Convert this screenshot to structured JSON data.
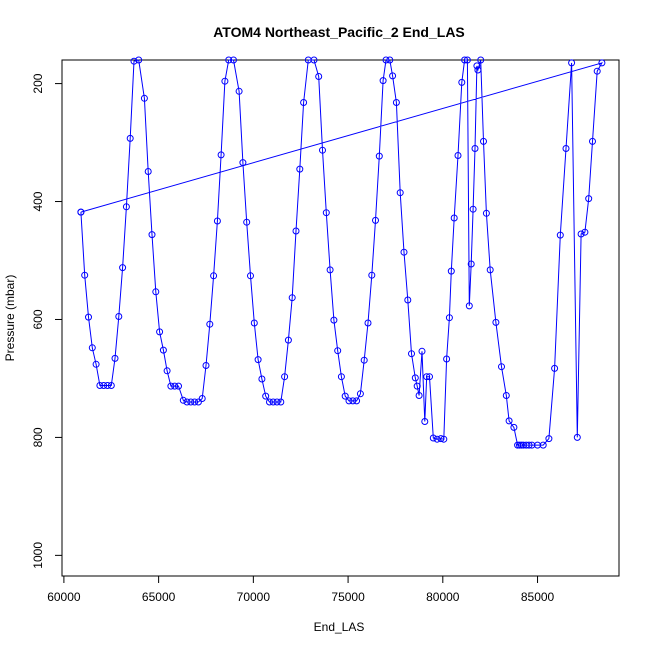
{
  "chart_data": {
    "type": "line",
    "title": "ATOM4 Northeast_Pacific_2 End_LAS",
    "xlabel": "End_LAS",
    "ylabel": "Pressure (mbar)",
    "xlim": [
      59900,
      89300
    ],
    "ylim": [
      1035,
      160
    ],
    "y_reversed": true,
    "x_ticks": [
      60000,
      65000,
      70000,
      75000,
      80000,
      85000
    ],
    "y_ticks": [
      200,
      400,
      600,
      800,
      1000
    ],
    "grid": false,
    "legend": "none",
    "line_color": "#0000ff",
    "marker": "open-circle",
    "series": [
      {
        "x": [
          60900,
          61100,
          61300,
          61500,
          61700,
          61900,
          62100,
          62300,
          62500,
          62700,
          62900,
          63100,
          63300,
          63500,
          63700,
          63950,
          64250,
          64450,
          64650,
          64850,
          65050,
          65250,
          65450,
          65650,
          65850,
          66050,
          66300,
          66500,
          66700,
          66900,
          67100,
          67300,
          67500,
          67700,
          67900,
          68100,
          68300,
          68500,
          68700,
          68950,
          69250,
          69450,
          69650,
          69850,
          70050,
          70250,
          70450,
          70650,
          70850,
          71050,
          71250,
          71450,
          71650,
          71850,
          72050,
          72250,
          72450,
          72650,
          72900,
          73200,
          73450,
          73650,
          73850,
          74050,
          74250,
          74450,
          74650,
          74850,
          75050,
          75250,
          75450,
          75650,
          75850,
          76050,
          76250,
          76450,
          76650,
          76850,
          77000,
          77200,
          77350,
          77550,
          77750,
          77950,
          78150,
          78350,
          78550,
          78650,
          78750,
          78900,
          79050,
          79150,
          79300,
          79500,
          79700,
          79900,
          80050,
          80200,
          80350,
          80450,
          80600,
          80800,
          81000,
          81150,
          81300,
          81400,
          81500,
          81600,
          81700,
          81800,
          81850,
          82000,
          82150,
          82300,
          82500,
          82800,
          83100,
          83350,
          83500,
          83750,
          83950,
          84050,
          84150,
          84250,
          84400,
          84550,
          84700,
          85000,
          85300,
          85600,
          85900,
          86200,
          86500,
          86800,
          87100,
          87300,
          87500,
          87700,
          87900,
          88150,
          88400,
          60900
        ],
        "values": [
          418,
          525,
          596,
          648,
          676,
          712,
          712,
          712,
          712,
          666,
          595,
          512,
          409,
          293,
          162,
          160,
          225,
          349,
          456,
          553,
          621,
          652,
          687,
          713,
          713,
          713,
          737,
          740,
          740,
          740,
          740,
          734,
          678,
          608,
          526,
          433,
          321,
          196,
          160,
          160,
          213,
          334,
          435,
          526,
          606,
          668,
          701,
          730,
          740,
          740,
          740,
          740,
          697,
          635,
          563,
          450,
          345,
          232,
          160,
          160,
          188,
          313,
          419,
          516,
          601,
          653,
          697,
          730,
          738,
          738,
          738,
          726,
          669,
          606,
          525,
          432,
          323,
          195,
          160,
          160,
          187,
          232,
          385,
          486,
          567,
          658,
          699,
          713,
          729,
          654,
          773,
          697,
          697,
          801,
          803,
          802,
          803,
          667,
          597,
          518,
          428,
          322,
          198,
          160,
          160,
          577,
          506,
          413,
          310,
          170,
          177,
          160,
          298,
          420,
          516,
          605,
          680,
          729,
          772,
          783,
          813,
          813,
          813,
          813,
          813,
          813,
          813,
          813,
          813,
          802,
          683,
          457,
          310,
          165,
          800,
          455,
          452,
          395,
          298,
          179,
          165,
          418
        ]
      }
    ]
  }
}
